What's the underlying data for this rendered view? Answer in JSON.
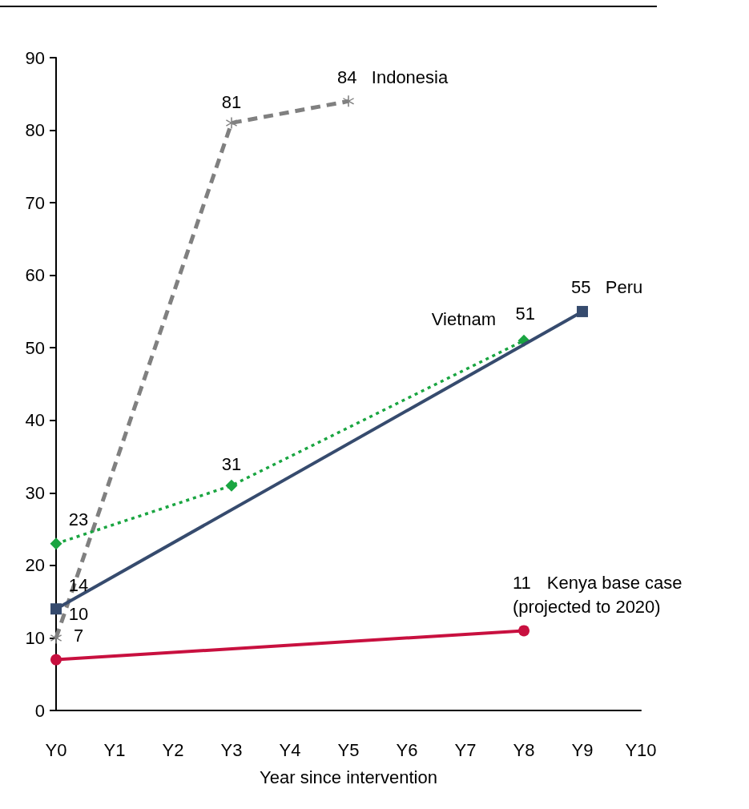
{
  "chart_data": {
    "type": "line",
    "xlabel": "Year since intervention",
    "categories": [
      "Y0",
      "Y1",
      "Y2",
      "Y3",
      "Y4",
      "Y5",
      "Y6",
      "Y7",
      "Y8",
      "Y9",
      "Y10"
    ],
    "ylim": [
      0,
      90
    ],
    "yticks": [
      0,
      10,
      20,
      30,
      40,
      50,
      60,
      70,
      80,
      90
    ],
    "grid": false,
    "legend": false,
    "data_labels": true,
    "series": [
      {
        "name": "Indonesia",
        "color": "#808080",
        "marker": "star",
        "line_style": "dashed",
        "x": [
          "Y0",
          "Y3",
          "Y5"
        ],
        "values": [
          10,
          81,
          84
        ]
      },
      {
        "name": "Vietnam",
        "color": "#1aa541",
        "marker": "diamond",
        "line_style": "dotted",
        "x": [
          "Y0",
          "Y3",
          "Y8"
        ],
        "values": [
          23,
          31,
          51
        ]
      },
      {
        "name": "Peru",
        "color": "#364b6e",
        "marker": "square",
        "line_style": "solid",
        "x": [
          "Y0",
          "Y9"
        ],
        "values": [
          14,
          55
        ]
      },
      {
        "name": "Kenya base case (projected to 2020)",
        "color": "#c8103f",
        "marker": "circle",
        "line_style": "solid",
        "x": [
          "Y0",
          "Y8"
        ],
        "values": [
          7,
          11
        ]
      }
    ]
  }
}
